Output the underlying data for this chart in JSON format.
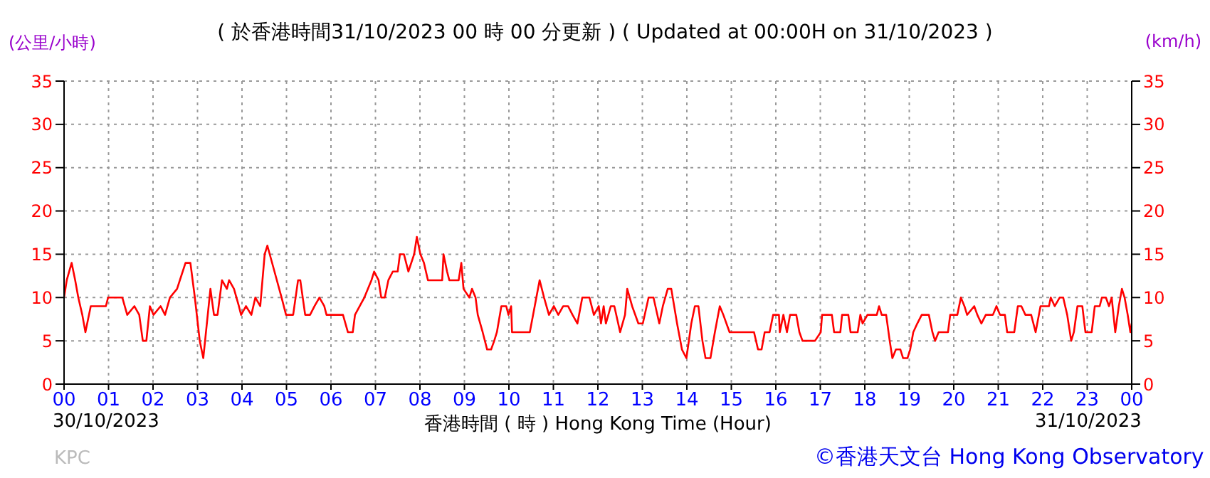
{
  "chart_data": {
    "type": "line",
    "title": "( 於香港時間31/10/2023 00 時 00 分更新 ) ( Updated at 00:00H on 31/10/2023 )",
    "ylabel": "(公里/小時)",
    "y2label": "(km/h)",
    "xlabel": "香港時間 ( 時 )  Hong Kong Time (Hour)",
    "annotations": [
      "30/10/2023",
      "31/10/2023",
      "KPC",
      "©香港天文台 Hong Kong Observatory"
    ],
    "x": [
      0,
      0.06,
      0.17,
      0.25,
      0.32,
      0.41,
      0.48,
      0.6,
      0.94,
      0.99,
      1.31,
      1.42,
      1.58,
      1.69,
      1.77,
      1.85,
      1.93,
      2.01,
      2.17,
      2.27,
      2.38,
      2.54,
      2.73,
      2.84,
      2.94,
      3.05,
      3.13,
      3.23,
      3.29,
      3.37,
      3.45,
      3.55,
      3.66,
      3.71,
      3.82,
      3.93,
      3.98,
      4.09,
      4.21,
      4.3,
      4.41,
      4.51,
      4.57,
      4.73,
      4.89,
      4.99,
      5.15,
      5.26,
      5.31,
      5.42,
      5.53,
      5.63,
      5.74,
      5.85,
      5.9,
      6.27,
      6.38,
      6.49,
      6.54,
      6.75,
      6.91,
      6.97,
      7.07,
      7.13,
      7.21,
      7.29,
      7.39,
      7.5,
      7.55,
      7.64,
      7.74,
      7.87,
      7.93,
      8.01,
      8.09,
      8.18,
      8.5,
      8.53,
      8.61,
      8.66,
      8.87,
      8.93,
      8.98,
      9.11,
      9.17,
      9.25,
      9.3,
      9.41,
      9.51,
      9.6,
      9.67,
      9.73,
      9.83,
      9.94,
      9.99,
      10.05,
      10.07,
      10.47,
      10.58,
      10.69,
      10.79,
      10.9,
      11.01,
      11.11,
      11.22,
      11.33,
      11.43,
      11.54,
      11.65,
      11.81,
      11.91,
      12.02,
      12.07,
      12.13,
      12.18,
      12.29,
      12.37,
      12.5,
      12.61,
      12.66,
      12.77,
      12.91,
      13.01,
      13.14,
      13.25,
      13.38,
      13.46,
      13.57,
      13.65,
      13.78,
      13.89,
      13.99,
      14.1,
      14.18,
      14.26,
      14.35,
      14.42,
      14.53,
      14.63,
      14.74,
      14.82,
      14.96,
      15.51,
      15.6,
      15.68,
      15.75,
      15.86,
      15.94,
      16.07,
      16.09,
      16.17,
      16.25,
      16.32,
      16.46,
      16.53,
      16.6,
      16.88,
      17.01,
      17.04,
      17.26,
      17.31,
      17.45,
      17.49,
      17.63,
      17.68,
      17.84,
      17.9,
      17.95,
      18.06,
      18.27,
      18.32,
      18.38,
      18.48,
      18.56,
      18.62,
      18.7,
      18.8,
      18.86,
      18.96,
      19.02,
      19.09,
      19.18,
      19.28,
      19.44,
      19.52,
      19.58,
      19.66,
      19.87,
      19.92,
      20.08,
      20.16,
      20.24,
      20.3,
      20.46,
      20.53,
      20.62,
      20.72,
      20.88,
      20.96,
      21.04,
      21.15,
      21.2,
      21.36,
      21.44,
      21.52,
      21.61,
      21.74,
      21.84,
      21.95,
      22.14,
      22.18,
      22.27,
      22.38,
      22.46,
      22.55,
      22.64,
      22.7,
      22.78,
      22.89,
      22.96,
      23.1,
      23.17,
      23.28,
      23.33,
      23.42,
      23.49,
      23.55,
      23.63,
      23.71,
      23.78,
      23.84,
      23.91,
      23.97,
      24
    ],
    "series": [
      {
        "color": "#ff0000",
        "values": [
          10,
          12,
          14,
          12,
          10,
          8,
          6,
          9,
          9,
          10,
          10,
          8,
          9,
          8,
          5,
          5,
          9,
          8,
          9,
          8,
          10,
          11,
          14,
          14,
          10,
          5,
          3,
          8,
          11,
          8,
          8,
          12,
          11,
          12,
          11,
          9,
          8,
          9,
          8,
          10,
          9,
          15,
          16,
          13,
          10,
          8,
          8,
          12,
          12,
          8,
          8,
          9,
          10,
          9,
          8,
          8,
          6,
          6,
          8,
          10,
          12,
          13,
          12,
          10,
          10,
          12,
          13,
          13,
          15,
          15,
          13,
          15,
          17,
          15,
          14,
          12,
          12,
          15,
          13,
          12,
          12,
          14,
          11,
          10,
          11,
          10,
          8,
          6,
          4,
          4,
          5,
          6,
          9,
          9,
          8,
          9,
          6,
          6,
          9,
          12,
          10,
          8,
          9,
          8,
          9,
          9,
          8,
          7,
          10,
          10,
          8,
          9,
          7,
          9,
          7,
          9,
          9,
          6,
          8,
          11,
          9,
          7,
          7,
          10,
          10,
          7,
          9,
          11,
          11,
          7,
          4,
          3,
          7,
          9,
          9,
          5,
          3,
          3,
          6,
          9,
          8,
          6,
          6,
          4,
          4,
          6,
          6,
          8,
          8,
          6,
          8,
          6,
          8,
          8,
          6,
          5,
          5,
          6,
          8,
          8,
          6,
          6,
          8,
          8,
          6,
          6,
          8,
          7,
          8,
          8,
          9,
          8,
          8,
          5,
          3,
          4,
          4,
          3,
          3,
          4,
          6,
          7,
          8,
          8,
          6,
          5,
          6,
          6,
          8,
          8,
          10,
          9,
          8,
          9,
          8,
          7,
          8,
          8,
          9,
          8,
          8,
          6,
          6,
          9,
          9,
          8,
          8,
          6,
          9,
          9,
          10,
          9,
          10,
          10,
          8,
          5,
          6,
          9,
          9,
          6,
          6,
          9,
          9,
          10,
          10,
          9,
          10,
          6,
          9,
          11,
          10,
          8,
          6,
          7
        ]
      }
    ],
    "xlim": [
      0,
      24
    ],
    "xticks": [
      {
        "value": 0,
        "label": "00"
      },
      {
        "value": 1,
        "label": "01"
      },
      {
        "value": 2,
        "label": "02"
      },
      {
        "value": 3,
        "label": "03"
      },
      {
        "value": 4,
        "label": "04"
      },
      {
        "value": 5,
        "label": "05"
      },
      {
        "value": 6,
        "label": "06"
      },
      {
        "value": 7,
        "label": "07"
      },
      {
        "value": 8,
        "label": "08"
      },
      {
        "value": 9,
        "label": "09"
      },
      10,
      11,
      12,
      13,
      14,
      15,
      16,
      17,
      18,
      19,
      20,
      21,
      22,
      23,
      {
        "value": 24,
        "label": "00"
      }
    ],
    "ylim": [
      0,
      35
    ],
    "yticks": [
      0,
      5,
      10,
      15,
      20,
      25,
      30,
      35
    ],
    "y2lim": [
      0,
      35
    ],
    "y2ticks": [
      0,
      5,
      10,
      15,
      20,
      25,
      30,
      35
    ],
    "grid": true,
    "legend": false,
    "marker": "none",
    "line_style": "solid"
  }
}
